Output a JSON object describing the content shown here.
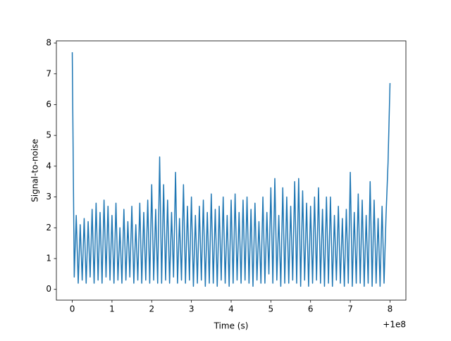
{
  "chart_data": {
    "type": "line",
    "xlabel": "Time (s)",
    "ylabel": "Signal-to-noise",
    "x_offset_label": "+1e8",
    "color": "#1f77b4",
    "x": [
      0.0,
      0.05,
      0.1,
      0.15,
      0.2,
      0.25,
      0.3,
      0.35,
      0.4,
      0.45,
      0.5,
      0.55,
      0.6,
      0.65,
      0.7,
      0.75,
      0.8,
      0.85,
      0.9,
      0.95,
      1.0,
      1.05,
      1.1,
      1.15,
      1.2,
      1.25,
      1.3,
      1.35,
      1.4,
      1.45,
      1.5,
      1.55,
      1.6,
      1.65,
      1.7,
      1.75,
      1.8,
      1.85,
      1.9,
      1.95,
      2.0,
      2.05,
      2.1,
      2.15,
      2.2,
      2.25,
      2.3,
      2.35,
      2.4,
      2.45,
      2.5,
      2.55,
      2.6,
      2.65,
      2.7,
      2.75,
      2.8,
      2.85,
      2.9,
      2.95,
      3.0,
      3.05,
      3.1,
      3.15,
      3.2,
      3.25,
      3.3,
      3.35,
      3.4,
      3.45,
      3.5,
      3.55,
      3.6,
      3.65,
      3.7,
      3.75,
      3.8,
      3.85,
      3.9,
      3.95,
      4.0,
      4.05,
      4.1,
      4.15,
      4.2,
      4.25,
      4.3,
      4.35,
      4.4,
      4.45,
      4.5,
      4.55,
      4.6,
      4.65,
      4.7,
      4.75,
      4.8,
      4.85,
      4.9,
      4.95,
      5.0,
      5.05,
      5.1,
      5.15,
      5.2,
      5.25,
      5.3,
      5.35,
      5.4,
      5.45,
      5.5,
      5.55,
      5.6,
      5.65,
      5.7,
      5.75,
      5.8,
      5.85,
      5.9,
      5.95,
      6.0,
      6.05,
      6.1,
      6.15,
      6.2,
      6.25,
      6.3,
      6.35,
      6.4,
      6.45,
      6.5,
      6.55,
      6.6,
      6.65,
      6.7,
      6.75,
      6.8,
      6.85,
      6.9,
      6.95,
      7.0,
      7.05,
      7.1,
      7.15,
      7.2,
      7.25,
      7.3,
      7.35,
      7.4,
      7.45,
      7.5,
      7.55,
      7.6,
      7.65,
      7.7,
      7.75,
      7.8,
      7.85,
      7.9,
      7.95,
      8.0
    ],
    "values": [
      7.7,
      0.4,
      2.4,
      0.2,
      2.1,
      0.3,
      2.3,
      0.2,
      2.2,
      0.4,
      2.6,
      0.2,
      2.8,
      0.3,
      2.5,
      0.2,
      2.9,
      0.4,
      2.7,
      0.3,
      2.4,
      0.2,
      2.8,
      0.3,
      2.0,
      0.2,
      2.6,
      0.3,
      2.2,
      0.4,
      2.7,
      0.2,
      2.1,
      0.3,
      2.8,
      0.2,
      2.5,
      0.3,
      2.9,
      0.2,
      3.4,
      0.3,
      2.6,
      0.2,
      4.3,
      0.2,
      3.4,
      0.3,
      2.9,
      0.2,
      2.5,
      0.4,
      3.8,
      0.2,
      2.3,
      0.3,
      3.4,
      0.2,
      2.7,
      0.3,
      3.0,
      0.1,
      2.4,
      0.2,
      2.7,
      0.3,
      2.9,
      0.1,
      2.5,
      0.2,
      3.1,
      0.2,
      2.6,
      0.1,
      2.7,
      0.3,
      3.0,
      0.2,
      2.4,
      0.1,
      2.9,
      0.2,
      3.1,
      0.3,
      2.5,
      0.2,
      2.9,
      0.3,
      3.0,
      0.2,
      2.6,
      0.1,
      2.8,
      0.3,
      2.2,
      0.2,
      3.0,
      0.2,
      2.5,
      0.5,
      3.3,
      0.2,
      3.6,
      0.3,
      2.4,
      0.1,
      3.3,
      0.2,
      3.0,
      0.2,
      2.7,
      0.3,
      3.5,
      0.2,
      3.6,
      0.1,
      3.2,
      0.3,
      2.8,
      0.1,
      2.7,
      0.2,
      3.0,
      0.3,
      3.3,
      0.2,
      2.6,
      0.1,
      3.0,
      0.2,
      3.0,
      0.1,
      2.4,
      0.3,
      2.7,
      0.2,
      2.3,
      0.1,
      2.6,
      0.2,
      3.8,
      0.1,
      2.5,
      0.2,
      3.1,
      0.2,
      2.9,
      0.1,
      2.4,
      0.2,
      3.5,
      0.1,
      2.9,
      0.2,
      2.3,
      0.1,
      2.7,
      0.2,
      2.4,
      4.1,
      6.7
    ],
    "xlim": [
      -0.4,
      8.4
    ],
    "ylim": [
      -0.35,
      8.07
    ],
    "xticks": [
      0,
      1,
      2,
      3,
      4,
      5,
      6,
      7,
      8
    ],
    "yticks": [
      0,
      1,
      2,
      3,
      4,
      5,
      6,
      7,
      8
    ]
  }
}
